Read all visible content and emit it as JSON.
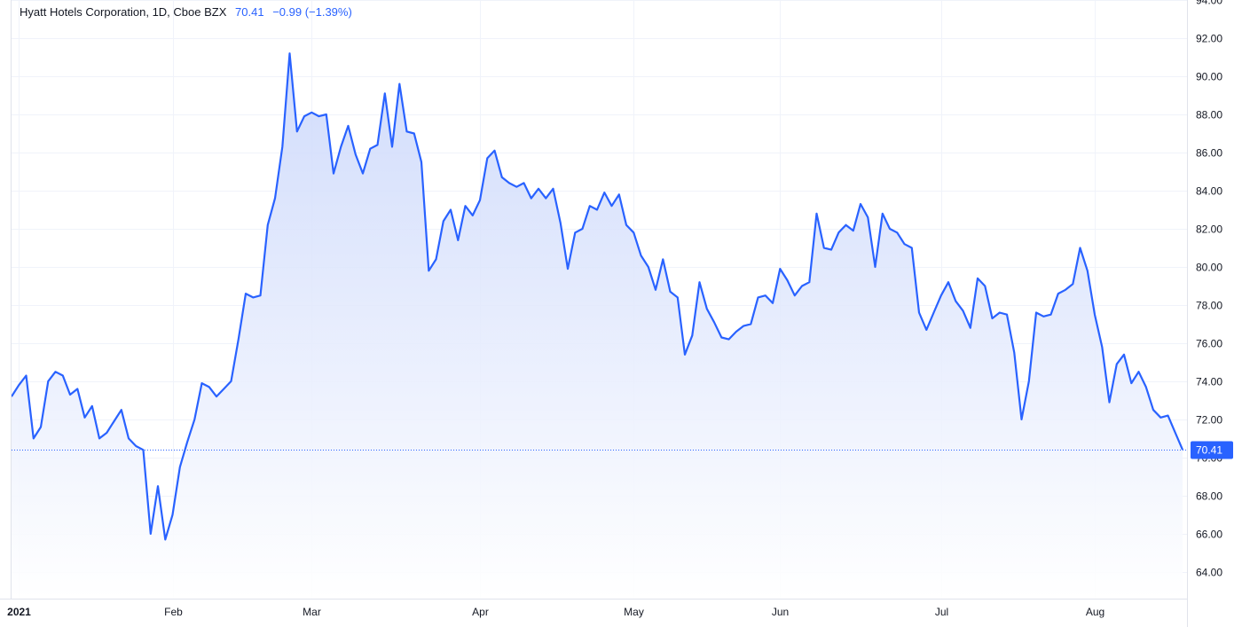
{
  "legend": {
    "symbol": "Hyatt Hotels Corporation, 1D, Cboe BZX",
    "last": "70.41",
    "change": "−0.99 (−1.39%)"
  },
  "colors": {
    "line": "#2962ff",
    "area_top": "#c9d6fb",
    "area_bottom": "#ffffff",
    "grid": "#f0f3fa",
    "axis_text": "#131722",
    "label_bg": "#2962ff"
  },
  "chart_data": {
    "type": "area",
    "title": "Hyatt Hotels Corporation, 1D, Cboe BZX",
    "xlabel": "",
    "ylabel": "",
    "ylim": [
      62.6,
      94.0
    ],
    "y_ticks": [
      "64.00",
      "66.00",
      "68.00",
      "70.00",
      "72.00",
      "74.00",
      "76.00",
      "78.00",
      "80.00",
      "82.00",
      "84.00",
      "86.00",
      "88.00",
      "90.00",
      "92.00",
      "94.00"
    ],
    "x_ticks": [
      {
        "label": "2021",
        "index": 1,
        "bold": true
      },
      {
        "label": "Feb",
        "index": 22
      },
      {
        "label": "Mar",
        "index": 41
      },
      {
        "label": "Apr",
        "index": 64
      },
      {
        "label": "May",
        "index": 85
      },
      {
        "label": "Jun",
        "index": 105
      },
      {
        "label": "Jul",
        "index": 127
      },
      {
        "label": "Aug",
        "index": 148
      }
    ],
    "last_value": 70.41,
    "last_label": "70.41",
    "grid": true,
    "series": [
      {
        "values": [
          73.2,
          73.8,
          74.3,
          71.0,
          71.6,
          74.0,
          74.5,
          74.3,
          73.3,
          73.6,
          72.1,
          72.7,
          71.0,
          71.3,
          71.9,
          72.5,
          71.0,
          70.6,
          70.4,
          66.0,
          68.5,
          65.7,
          67.0,
          69.5,
          70.8,
          72.0,
          73.9,
          73.7,
          73.2,
          73.6,
          74.0,
          76.2,
          78.6,
          78.4,
          78.5,
          82.2,
          83.6,
          86.3,
          91.2,
          87.1,
          87.9,
          88.1,
          87.9,
          88.0,
          84.9,
          86.3,
          87.4,
          85.9,
          84.9,
          86.2,
          86.4,
          89.1,
          86.3,
          89.6,
          87.1,
          87.0,
          85.5,
          79.8,
          80.4,
          82.4,
          83.0,
          81.4,
          83.2,
          82.7,
          83.5,
          85.7,
          86.1,
          84.7,
          84.4,
          84.2,
          84.4,
          83.6,
          84.1,
          83.6,
          84.1,
          82.3,
          79.9,
          81.8,
          82.0,
          83.2,
          83.0,
          83.9,
          83.2,
          83.8,
          82.2,
          81.8,
          80.6,
          80.0,
          78.8,
          80.4,
          78.7,
          78.4,
          75.4,
          76.4,
          79.2,
          77.8,
          77.1,
          76.3,
          76.2,
          76.6,
          76.9,
          77.0,
          78.4,
          78.5,
          78.1,
          79.9,
          79.3,
          78.5,
          79.0,
          79.2,
          82.8,
          81.0,
          80.9,
          81.8,
          82.2,
          81.9,
          83.3,
          82.6,
          80.0,
          82.8,
          82.0,
          81.8,
          81.2,
          81.0,
          77.6,
          76.7,
          77.6,
          78.5,
          79.2,
          78.2,
          77.7,
          76.8,
          79.4,
          79.0,
          77.3,
          77.6,
          77.5,
          75.5,
          72.0,
          74.0,
          77.6,
          77.4,
          77.5,
          78.6,
          78.8,
          79.1,
          81.0,
          79.8,
          77.5,
          75.8,
          72.9,
          74.9,
          75.4,
          73.9,
          74.5,
          73.7,
          72.5,
          72.1,
          72.2,
          71.3,
          70.41
        ]
      }
    ]
  }
}
